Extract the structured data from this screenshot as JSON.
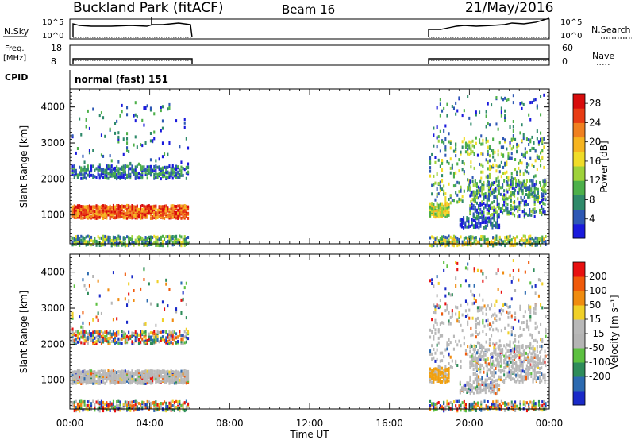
{
  "header": {
    "station": "Buckland Park (fitACF)",
    "beam": "Beam 16",
    "date": "21/May/2016"
  },
  "panels": {
    "nsky": {
      "label": "N.Sky",
      "right_label": "N.Search",
      "left_ticks": [
        "10^5",
        "10^0"
      ],
      "right_ticks": [
        "10^5",
        "10^0"
      ]
    },
    "freq": {
      "label_top": "Freq.",
      "label_unit": "[MHz]",
      "left_ticks": [
        "18",
        "8"
      ],
      "right_label": "Nave",
      "right_ticks": [
        "60",
        "0"
      ]
    },
    "cpid": {
      "label": "CPID",
      "mode_text": "normal (fast) 151"
    },
    "power": {
      "ylabel": "Slant Range [km]",
      "colorbar_label": "Power [dB]"
    },
    "velocity": {
      "ylabel": "Slant Range [km]",
      "colorbar_label": "Velocity [m s⁻¹]"
    }
  },
  "colors": {
    "power_scale": [
      "#1a1adc",
      "#2e58b4",
      "#2f8a6a",
      "#4db04a",
      "#9ed23a",
      "#f0dc28",
      "#f6b420",
      "#f08020",
      "#e83c14",
      "#d80c0c"
    ],
    "velocity_scale": [
      "#1a2ac8",
      "#2c6ab0",
      "#2e8c5a",
      "#5cc040",
      "#b4b4b4",
      "#b8b8b8",
      "#f0d028",
      "#f08c10",
      "#f05a0a",
      "#e81010"
    ]
  },
  "chart_data": [
    {
      "type": "heatmap",
      "title": "Power",
      "ylabel": "Slant Range [km]",
      "xlabel": "Time UT",
      "x_ticks": [
        "00:00",
        "04:00",
        "08:00",
        "12:00",
        "16:00",
        "20:00",
        "00:00"
      ],
      "y_ticks": [
        1000,
        2000,
        3000,
        4000
      ],
      "ylim": [
        200,
        4500
      ],
      "xlim_hours": [
        0,
        24
      ],
      "data_gaps_hours": [
        [
          6,
          18
        ]
      ],
      "colorbar": {
        "label": "Power [dB]",
        "ticks": [
          28,
          24,
          20,
          16,
          12,
          8,
          4
        ],
        "range": [
          0,
          30
        ]
      }
    },
    {
      "type": "heatmap",
      "title": "Velocity",
      "ylabel": "Slant Range [km]",
      "xlabel": "Time UT",
      "x_ticks": [
        "00:00",
        "04:00",
        "08:00",
        "12:00",
        "16:00",
        "20:00",
        "00:00"
      ],
      "y_ticks": [
        1000,
        2000,
        3000,
        4000
      ],
      "ylim": [
        200,
        4500
      ],
      "xlim_hours": [
        0,
        24
      ],
      "data_gaps_hours": [
        [
          6,
          18
        ]
      ],
      "colorbar": {
        "label": "Velocity [m s⁻¹]",
        "ticks": [
          200,
          100,
          50,
          15,
          -15,
          -50,
          -100,
          -200
        ]
      }
    }
  ],
  "x_axis": {
    "label": "Time UT",
    "ticks": [
      "00:00",
      "04:00",
      "08:00",
      "12:00",
      "16:00",
      "20:00",
      "00:00"
    ]
  }
}
